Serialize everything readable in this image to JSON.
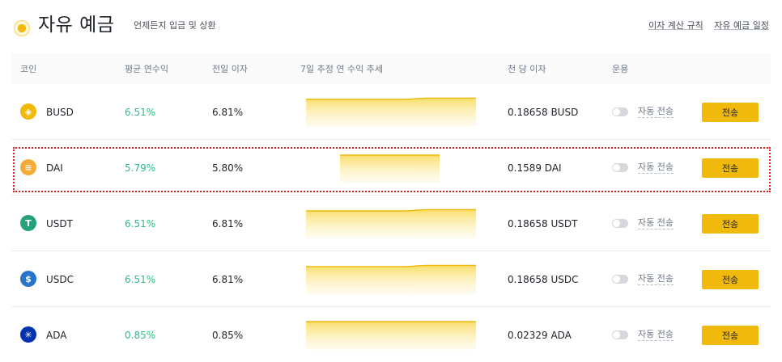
{
  "header": {
    "title": "자유 예금",
    "subtitle": "언제든지 입금 및 상환",
    "links": [
      "이자 계산 규칙",
      "자유 예금 일정"
    ]
  },
  "columns": {
    "coin": "코인",
    "avg_apy": "평균 연수익",
    "prev_interest": "전일 이자",
    "trend": "7일 추정 연 수익 추세",
    "per_thousand": "천 당 이자",
    "operation": "운용"
  },
  "rows": [
    {
      "icon": "busd-icon",
      "color": "#f0b90b",
      "glyph": "◈",
      "name": "BUSD",
      "avg": "6.51%",
      "prev": "6.81%",
      "per": "0.18658 BUSD",
      "auto": "자동 전송",
      "button": "전송",
      "trend": [
        6.5,
        6.5,
        6.5,
        6.5,
        6.5,
        6.8,
        6.8,
        6.8
      ]
    },
    {
      "icon": "dai-icon",
      "color": "#f5ac37",
      "glyph": "≡",
      "name": "DAI",
      "avg": "5.79%",
      "prev": "5.80%",
      "per": "0.1589 DAI",
      "auto": "자동 전송",
      "button": "전송",
      "trend": [
        5.8,
        5.8,
        5.8
      ]
    },
    {
      "icon": "usdt-icon",
      "color": "#26a17b",
      "glyph": "T",
      "name": "USDT",
      "avg": "6.51%",
      "prev": "6.81%",
      "per": "0.18658 USDT",
      "auto": "자동 전송",
      "button": "전송",
      "trend": [
        6.5,
        6.5,
        6.5,
        6.5,
        6.5,
        6.8,
        6.8,
        6.8
      ]
    },
    {
      "icon": "usdc-icon",
      "color": "#2775ca",
      "glyph": "$",
      "name": "USDC",
      "avg": "6.51%",
      "prev": "6.81%",
      "per": "0.18658 USDC",
      "auto": "자동 전송",
      "button": "전송",
      "trend": [
        6.5,
        6.5,
        6.5,
        6.5,
        6.5,
        6.8,
        6.8,
        6.8
      ]
    },
    {
      "icon": "ada-icon",
      "color": "#0033ad",
      "glyph": "✳",
      "name": "ADA",
      "avg": "0.85%",
      "prev": "0.85%",
      "per": "0.02329 ADA",
      "auto": "자동 전송",
      "button": "전송",
      "trend": [
        0.85,
        0.85,
        0.85,
        0.85,
        0.85,
        0.85,
        0.85,
        0.85
      ]
    }
  ]
}
